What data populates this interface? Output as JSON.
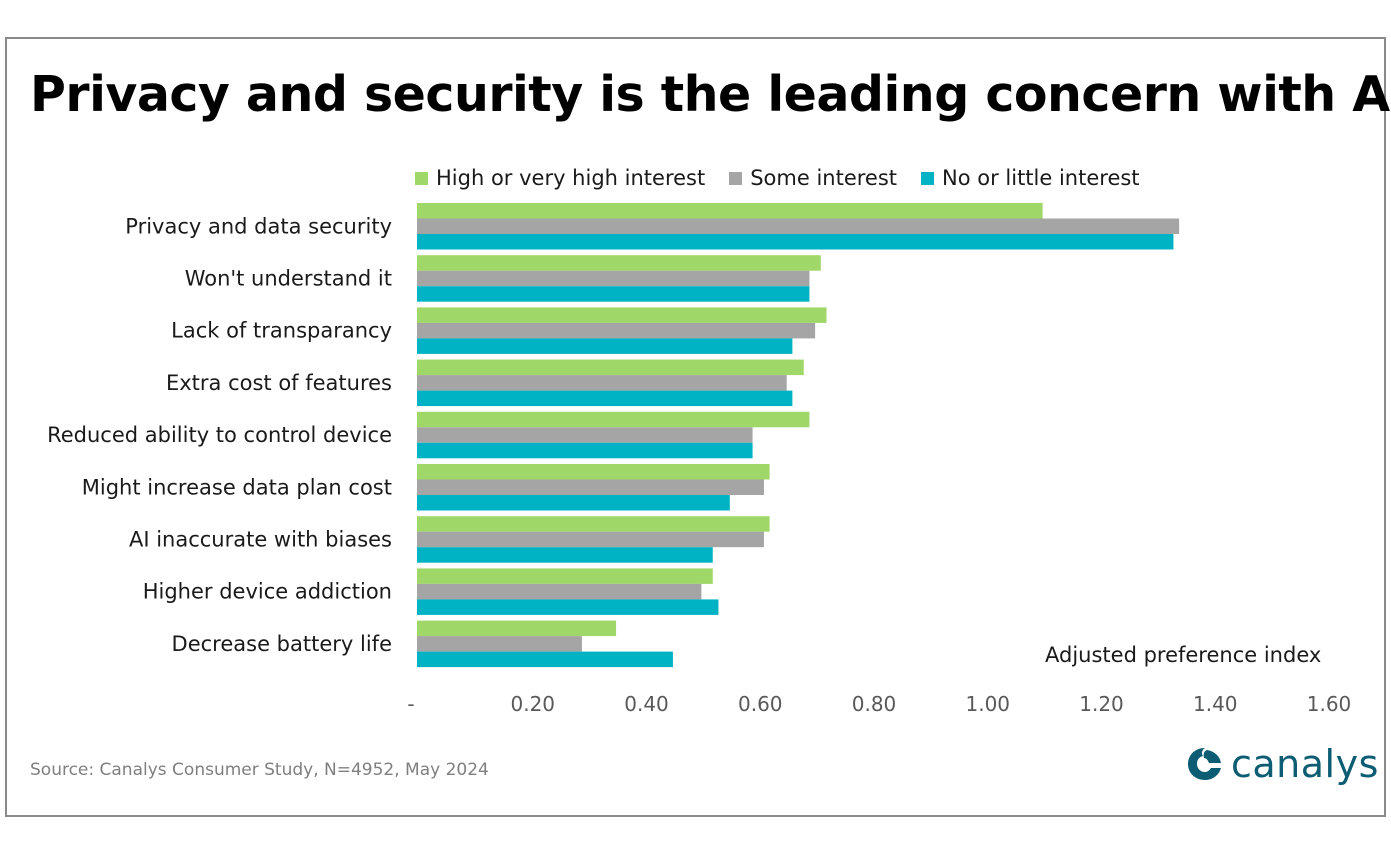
{
  "title": "Privacy and security is the leading concern with AI",
  "source": "Source: Canalys Consumer Study, N=4952, May 2024",
  "brand": "canalys",
  "colors": {
    "high": "#9fd769",
    "some": "#a5a5a5",
    "none": "#00b3c4",
    "brand": "#0c5d73"
  },
  "chart_data": {
    "type": "bar",
    "orientation": "horizontal",
    "title": "Privacy and security is the leading concern with AI",
    "xlabel": "Adjusted preference index",
    "ylabel": "",
    "xlim": [
      0,
      1.6
    ],
    "xticks": [
      "-",
      "0.20",
      "0.40",
      "0.60",
      "0.80",
      "1.00",
      "1.20",
      "1.40",
      "1.60"
    ],
    "grid": false,
    "legend_position": "top",
    "categories": [
      "Privacy and data security",
      "Won't understand it",
      "Lack of transparancy",
      "Extra cost of features",
      "Reduced ability to control device",
      "Might increase data plan cost",
      "AI inaccurate with biases",
      "Higher device addiction",
      "Decrease battery life"
    ],
    "series": [
      {
        "name": "High or very high interest",
        "color": "#9fd769",
        "values": [
          1.1,
          0.71,
          0.72,
          0.68,
          0.69,
          0.62,
          0.62,
          0.52,
          0.35
        ]
      },
      {
        "name": "Some interest",
        "color": "#a5a5a5",
        "values": [
          1.34,
          0.69,
          0.7,
          0.65,
          0.59,
          0.61,
          0.61,
          0.5,
          0.29
        ]
      },
      {
        "name": "No or little interest",
        "color": "#00b3c4",
        "values": [
          1.33,
          0.69,
          0.66,
          0.66,
          0.59,
          0.55,
          0.52,
          0.53,
          0.45
        ]
      }
    ]
  }
}
